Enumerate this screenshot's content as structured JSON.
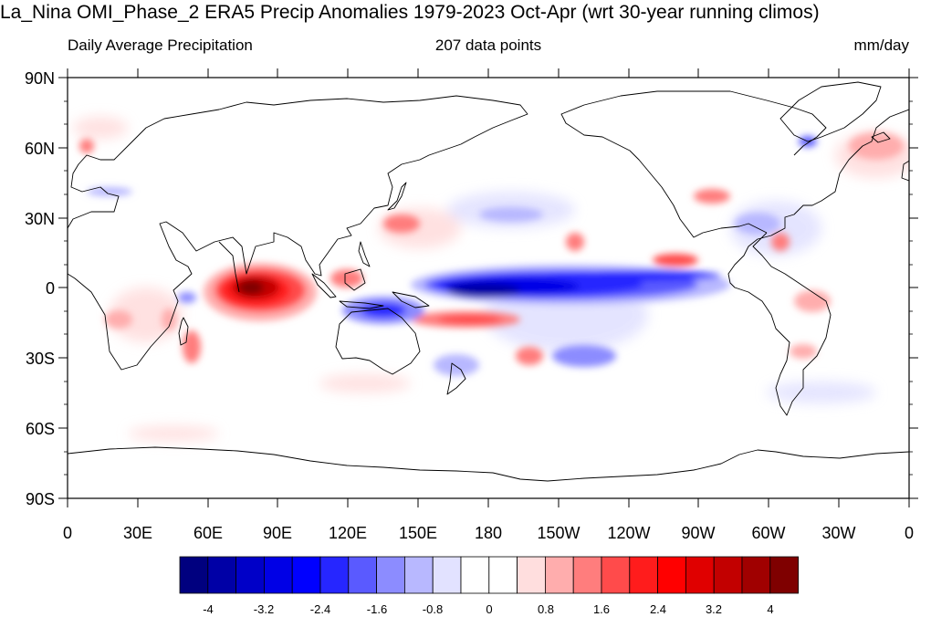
{
  "title": "La_Nina OMI_Phase_2 ERA5 Precip Anomalies 1979-2023 Oct-Apr (wrt 30-year running climos)",
  "subtitle_left": "Daily Average Precipitation",
  "subtitle_center": "207 data points",
  "subtitle_right": "mm/day",
  "map": {
    "projection": "cylindrical-equidistant",
    "lon_range": [
      0,
      360
    ],
    "lat_range": [
      -90,
      90
    ],
    "lat_ticks": [
      "90N",
      "60N",
      "30N",
      "0",
      "30S",
      "60S",
      "90S"
    ],
    "lon_ticks": [
      "0",
      "30E",
      "60E",
      "90E",
      "120E",
      "150E",
      "180",
      "150W",
      "120W",
      "90W",
      "60W",
      "30W",
      "0"
    ],
    "coastlines": true
  },
  "colorbar": {
    "labels": [
      "-4",
      "-3.2",
      "-2.4",
      "-1.6",
      "-0.8",
      "0",
      "0.8",
      "1.6",
      "2.4",
      "3.2",
      "4"
    ],
    "colors": [
      "#00007f",
      "#0000a6",
      "#0000c8",
      "#0000e6",
      "#0000ff",
      "#2626ff",
      "#5a5aff",
      "#8c8cff",
      "#b8b8ff",
      "#e2e2ff",
      "#ffffff",
      "#ffffff",
      "#ffdede",
      "#ffadad",
      "#ff7d7d",
      "#ff4b4b",
      "#ff1c1c",
      "#ff0000",
      "#e00000",
      "#c20000",
      "#a00000",
      "#7f0000"
    ]
  },
  "anomaly_features": [
    {
      "label": "Indian Ocean wet",
      "sign": "positive",
      "lon": 82,
      "lat": -3,
      "peak_mm_day": 4.5
    },
    {
      "label": "Indonesia wet",
      "sign": "positive",
      "lon": 118,
      "lat": 2,
      "peak_mm_day": 1.6
    },
    {
      "label": "SPCZ wet",
      "sign": "positive",
      "lon": 180,
      "lat": -14,
      "peak_mm_day": 2.0
    },
    {
      "label": "Equatorial Pacific dry",
      "sign": "negative",
      "lon": 225,
      "lat": 2,
      "peak_mm_day": -4.0
    },
    {
      "label": "Maritime continent dry",
      "sign": "negative",
      "lon": 135,
      "lat": -5,
      "peak_mm_day": -2.0
    },
    {
      "label": "ITCZ east Pacific wet",
      "sign": "positive",
      "lon": 255,
      "lat": 9,
      "peak_mm_day": 2.0
    },
    {
      "label": "North Atlantic wet",
      "sign": "positive",
      "lon": 345,
      "lat": 60,
      "peak_mm_day": 1.2
    },
    {
      "label": "SE Africa wet",
      "sign": "positive",
      "lon": 45,
      "lat": -20,
      "peak_mm_day": 2.0
    }
  ]
}
